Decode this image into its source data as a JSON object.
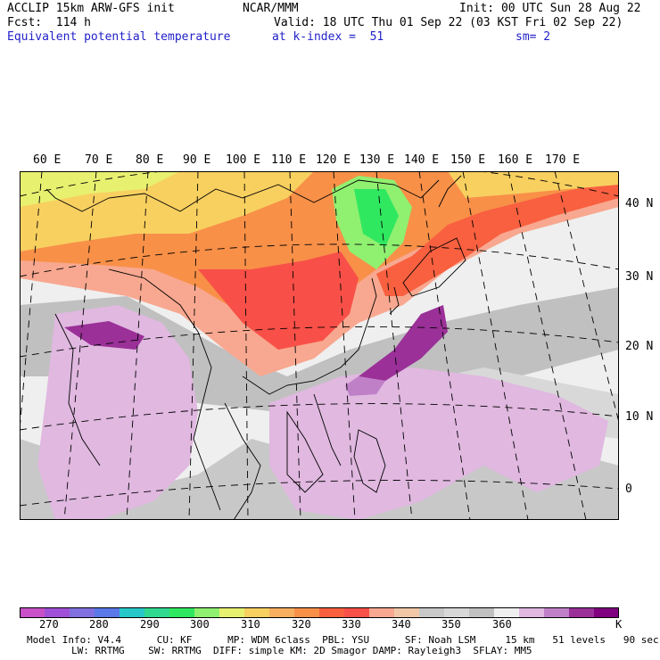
{
  "header": {
    "model": "ACCLIP 15km ARW-GFS init",
    "center": "NCAR/MMM",
    "init": "Init: 00 UTC Sun 28 Aug 22",
    "fcst": "Fcst:  114 h",
    "valid": "Valid: 18 UTC Thu 01 Sep 22 (03 KST Fri 02 Sep 22)",
    "field": "Equivalent potential temperature",
    "level": "at k-index =  51",
    "smooth": "sm= 2"
  },
  "map": {
    "lon_labels": [
      "60 E",
      "70 E",
      "80 E",
      "90 E",
      "100 E",
      "110 E",
      "120 E",
      "130 E",
      "140 E",
      "150 E",
      "160 E",
      "170 E"
    ],
    "lat_labels": [
      "40 N",
      "30 N",
      "20 N",
      "10 N",
      "0"
    ]
  },
  "colorbar": {
    "colors": [
      "#c850c8",
      "#a050d8",
      "#8070e0",
      "#5a78e8",
      "#28c8c8",
      "#30d890",
      "#30e860",
      "#90f070",
      "#e8f070",
      "#f8d060",
      "#f8b060",
      "#f89048",
      "#f86040",
      "#f85048",
      "#f8a890",
      "#f0c8a8",
      "#c8c8c8",
      "#d8d8d8",
      "#c0c0c0",
      "#efefef",
      "#e0b8e0",
      "#c080c8",
      "#9a3098",
      "#800080"
    ],
    "labels": [
      "270",
      "280",
      "290",
      "300",
      "310",
      "320",
      "330",
      "340",
      "350",
      "360",
      "K"
    ],
    "units": "K"
  },
  "footer": {
    "line1": "Model Info: V4.4      CU: KF      MP: WDM 6class  PBL: YSU      SF: Noah LSM     15 km   51 levels   90 sec",
    "line2": "LW: RRTMG    SW: RRTMG  DIFF: simple KM: 2D Smagor DAMP: Rayleigh3  SFLAY: MM5"
  }
}
